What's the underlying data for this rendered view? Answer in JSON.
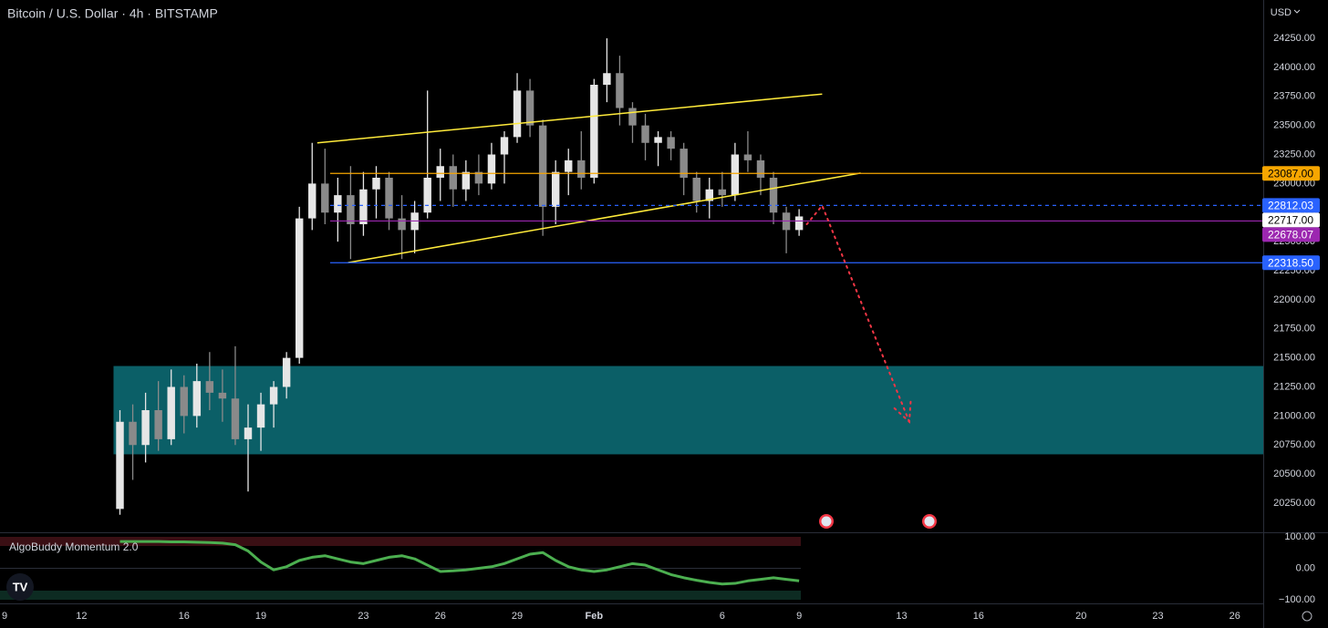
{
  "chart_data": {
    "type": "candlestick",
    "title": "Bitcoin / U.S. Dollar · 4h · BITSTAMP",
    "currency": "USD",
    "grid": false,
    "up_color": "#e6e6e6",
    "down_color": "#8a8a8a",
    "xlim": [
      -0.18,
      49.11
    ],
    "xticks": [
      {
        "value": 0,
        "label": "9"
      },
      {
        "value": 3,
        "label": "12"
      },
      {
        "value": 7,
        "label": "16"
      },
      {
        "value": 10,
        "label": "19"
      },
      {
        "value": 14,
        "label": "23"
      },
      {
        "value": 17,
        "label": "26"
      },
      {
        "value": 20,
        "label": "29"
      },
      {
        "value": 23,
        "label": "Feb"
      },
      {
        "value": 28,
        "label": "6"
      },
      {
        "value": 31,
        "label": "9"
      },
      {
        "value": 35,
        "label": "13"
      },
      {
        "value": 38,
        "label": "16"
      },
      {
        "value": 42,
        "label": "20"
      },
      {
        "value": 45,
        "label": "23"
      },
      {
        "value": 48,
        "label": "26"
      }
    ],
    "ylim": [
      20006.9,
      24579.4
    ],
    "yticks": [
      {
        "value": 20250,
        "label": "20250.00"
      },
      {
        "value": 20500,
        "label": "20500.00"
      },
      {
        "value": 20750,
        "label": "20750.00"
      },
      {
        "value": 21000,
        "label": "21000.00"
      },
      {
        "value": 21250,
        "label": "21250.00"
      },
      {
        "value": 21500,
        "label": "21500.00"
      },
      {
        "value": 21750,
        "label": "21750.00"
      },
      {
        "value": 22000,
        "label": "22000.00"
      },
      {
        "value": 22250,
        "label": "22250.00"
      },
      {
        "value": 22500,
        "label": "22500.00"
      },
      {
        "value": 22750,
        "label": "22750.00"
      },
      {
        "value": 23000,
        "label": "23000.00"
      },
      {
        "value": 23250,
        "label": "23250.00"
      },
      {
        "value": 23500,
        "label": "23500.00"
      },
      {
        "value": 23750,
        "label": "23750.00"
      },
      {
        "value": 24000,
        "label": "24000.00"
      },
      {
        "value": 24250,
        "label": "24250.00"
      }
    ],
    "x": [
      4.5,
      5,
      5.5,
      6,
      6.5,
      7,
      7.5,
      8,
      8.5,
      9,
      9.5,
      10,
      10.5,
      11,
      11.5,
      12,
      12.5,
      13,
      13.5,
      14,
      14.5,
      15,
      15.5,
      16,
      16.5,
      17,
      17.5,
      18,
      18.5,
      19,
      19.5,
      20,
      20.5,
      21,
      21.5,
      22,
      22.5,
      23,
      23.5,
      24,
      24.5,
      25,
      25.5,
      26,
      26.5,
      27,
      27.5,
      28,
      28.5,
      29,
      29.5,
      30,
      30.5,
      31
    ],
    "open": [
      20200,
      20950,
      20750,
      21050,
      20800,
      21250,
      21000,
      21300,
      21200,
      21150,
      20800,
      20900,
      21100,
      21250,
      21500,
      22700,
      23000,
      22750,
      22900,
      22650,
      22950,
      23050,
      22700,
      22600,
      22750,
      23050,
      23150,
      22950,
      23100,
      23000,
      23250,
      23400,
      23800,
      23500,
      22800,
      23100,
      23200,
      23050,
      23850,
      23950,
      23650,
      23500,
      23350,
      23400,
      23300,
      23050,
      22850,
      22950,
      22900,
      23250,
      23200,
      23050,
      22750,
      22600
    ],
    "high": [
      21050,
      21100,
      21200,
      21300,
      21400,
      21350,
      21450,
      21550,
      21400,
      21600,
      21100,
      21200,
      21300,
      21550,
      22800,
      23350,
      23300,
      23050,
      23150,
      23100,
      23150,
      23100,
      22900,
      22850,
      23800,
      23300,
      23250,
      23200,
      23250,
      23350,
      23450,
      23950,
      23900,
      23550,
      23200,
      23300,
      23450,
      23900,
      24250,
      24100,
      23700,
      23600,
      23450,
      23450,
      23350,
      23100,
      23050,
      23100,
      23350,
      23450,
      23250,
      23100,
      22800,
      22780
    ],
    "low": [
      20150,
      20450,
      20600,
      20700,
      20750,
      20850,
      20900,
      21050,
      20950,
      20750,
      20350,
      20700,
      20900,
      21150,
      21450,
      22600,
      22650,
      22500,
      22350,
      22550,
      22700,
      22600,
      22350,
      22400,
      22700,
      22850,
      22800,
      22850,
      22900,
      22950,
      23000,
      23350,
      23400,
      22550,
      22650,
      22900,
      22950,
      23000,
      23700,
      23500,
      23350,
      23200,
      23150,
      23200,
      22900,
      22750,
      22700,
      22800,
      22850,
      23100,
      22900,
      22650,
      22400,
      22550
    ],
    "close": [
      20950,
      20750,
      21050,
      20800,
      21250,
      21000,
      21300,
      21200,
      21150,
      20800,
      20900,
      21100,
      21250,
      21500,
      22700,
      23000,
      22750,
      22900,
      22650,
      22950,
      23050,
      22700,
      22600,
      22750,
      23050,
      23150,
      22950,
      23100,
      23000,
      23250,
      23400,
      23800,
      23500,
      22800,
      23100,
      23200,
      23050,
      23850,
      23950,
      23650,
      23500,
      23350,
      23400,
      23300,
      23050,
      22850,
      22950,
      22900,
      23250,
      23200,
      23050,
      22750,
      22600,
      22717
    ],
    "zone": {
      "from": 20670,
      "to": 21430,
      "color": "#0b5f67"
    },
    "levels": [
      {
        "value": 23087,
        "label": "23087.00",
        "color": "#f7a600",
        "text_color": "#000000",
        "style": "solid"
      },
      {
        "value": 22812.03,
        "label": "22812.03",
        "color": "#2962ff",
        "text_color": "#ffffff",
        "style": "dashed"
      },
      {
        "value": 22717,
        "label": "22717.00",
        "color": "#ffffff",
        "text_color": "#000000",
        "style": "none"
      },
      {
        "value": 22678.07,
        "label": "22678.07",
        "color": "#9c27b0",
        "text_color": "#ffffff",
        "style": "solid"
      },
      {
        "value": 22318.5,
        "label": "22318.50",
        "color": "#2962ff",
        "text_color": "#ffffff",
        "style": "solid"
      }
    ],
    "trendlines": [
      {
        "x": [
          12.2,
          31.9
        ],
        "y": [
          23350,
          23770
        ],
        "color": "#ffeb3b"
      },
      {
        "x": [
          13.4,
          33.4
        ],
        "y": [
          22320,
          23090
        ],
        "color": "#ffeb3b"
      }
    ],
    "projection": {
      "x": [
        31.3,
        31.9,
        35.3
      ],
      "y": [
        22650,
        22810,
        20950
      ],
      "color": "#f23645"
    },
    "indicator": {
      "title": "AlgoBuddy Momentum 2.0",
      "color": "#4caf50",
      "ylim": [
        -105.8,
        111.6
      ],
      "yticks": [
        {
          "value": 100,
          "label": "100.00"
        },
        {
          "value": 0,
          "label": "0.00"
        },
        {
          "value": -100,
          "label": "−100.00"
        }
      ],
      "values": [
        85,
        85,
        85,
        85,
        84,
        84,
        83,
        82,
        80,
        75,
        55,
        20,
        -5,
        5,
        25,
        35,
        40,
        30,
        20,
        15,
        25,
        35,
        40,
        30,
        10,
        -10,
        -8,
        -5,
        0,
        5,
        15,
        30,
        45,
        50,
        25,
        5,
        -5,
        -10,
        -5,
        5,
        15,
        10,
        -5,
        -20,
        -30,
        -38,
        -45,
        -50,
        -48,
        -40,
        -35,
        -30,
        -35,
        -40
      ]
    }
  }
}
